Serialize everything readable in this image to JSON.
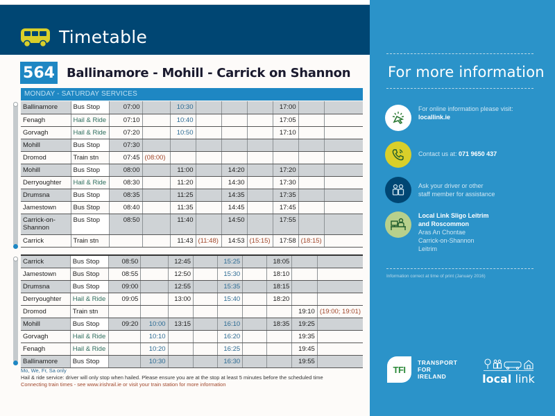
{
  "header": {
    "title": "Timetable",
    "icon": "bus-icon"
  },
  "route": {
    "number": "564",
    "name": "Ballinamore - Mohill - Carrick on Shannon"
  },
  "service_label": "MONDAY - SATURDAY SERVICES",
  "outbound": [
    {
      "stop": "Ballinamore",
      "type": "Bus Stop",
      "times": [
        "07:00",
        "",
        "10:30",
        "",
        "",
        "",
        "17:00",
        "",
        ""
      ]
    },
    {
      "stop": "Fenagh",
      "type": "Hail & Ride",
      "times": [
        "07:10",
        "",
        "10:40",
        "",
        "",
        "",
        "17:05",
        "",
        ""
      ]
    },
    {
      "stop": "Gorvagh",
      "type": "Hail & Ride",
      "times": [
        "07:20",
        "",
        "10:50",
        "",
        "",
        "",
        "17:10",
        "",
        ""
      ]
    },
    {
      "stop": "Mohill",
      "type": "Bus Stop",
      "times": [
        "07:30",
        "",
        "",
        "",
        "",
        "",
        "",
        "",
        ""
      ]
    },
    {
      "stop": "Dromod",
      "type": "Train stn",
      "times": [
        "07:45",
        "(08:00)",
        "",
        "",
        "",
        "",
        "",
        "",
        ""
      ]
    },
    {
      "stop": "Mohill",
      "type": "Bus Stop",
      "times": [
        "08:00",
        "",
        "11:00",
        "",
        "14:20",
        "",
        "17:20",
        "",
        ""
      ]
    },
    {
      "stop": "Derryoughter",
      "type": "Hail & Ride",
      "times": [
        "08:30",
        "",
        "11:20",
        "",
        "14:30",
        "",
        "17:30",
        "",
        ""
      ]
    },
    {
      "stop": "Drumsna",
      "type": "Bus Stop",
      "times": [
        "08:35",
        "",
        "11:25",
        "",
        "14:35",
        "",
        "17:35",
        "",
        ""
      ]
    },
    {
      "stop": "Jamestown",
      "type": "Bus Stop",
      "times": [
        "08:40",
        "",
        "11:35",
        "",
        "14:45",
        "",
        "17:45",
        "",
        ""
      ]
    },
    {
      "stop": "Carrick-on-Shannon",
      "type": "Bus Stop",
      "times": [
        "08:50",
        "",
        "11:40",
        "",
        "14:50",
        "",
        "17:55",
        "",
        ""
      ]
    },
    {
      "stop": "Carrick",
      "type": "Train stn",
      "times": [
        "",
        "",
        "11:43",
        "(11:48)",
        "14:53",
        "(15:15)",
        "17:58",
        "(18:15)",
        ""
      ]
    }
  ],
  "inbound": [
    {
      "stop": "Carrick",
      "type": "Bus Stop",
      "times": [
        "08:50",
        "",
        "12:45",
        "",
        "15:25",
        "",
        "18:05",
        "",
        ""
      ]
    },
    {
      "stop": "Jamestown",
      "type": "Bus Stop",
      "times": [
        "08:55",
        "",
        "12:50",
        "",
        "15:30",
        "",
        "18:10",
        "",
        ""
      ]
    },
    {
      "stop": "Drumsna",
      "type": "Bus Stop",
      "times": [
        "09:00",
        "",
        "12:55",
        "",
        "15:35",
        "",
        "18:15",
        "",
        ""
      ]
    },
    {
      "stop": "Derryoughter",
      "type": "Hail & Ride",
      "times": [
        "09:05",
        "",
        "13:00",
        "",
        "15:40",
        "",
        "18:20",
        "",
        ""
      ]
    },
    {
      "stop": "Dromod",
      "type": "Train stn",
      "times": [
        "",
        "",
        "",
        "",
        "",
        "",
        "",
        "19:10",
        "(19:00; 19:01)"
      ]
    },
    {
      "stop": "Mohill",
      "type": "Bus Stop",
      "times": [
        "09:20",
        "10:00",
        "13:15",
        "",
        "16:10",
        "",
        "18:35",
        "19:25",
        ""
      ]
    },
    {
      "stop": "Gorvagh",
      "type": "Hail & Ride",
      "times": [
        "",
        "10:10",
        "",
        "",
        "16:20",
        "",
        "",
        "19:35",
        ""
      ]
    },
    {
      "stop": "Fenagh",
      "type": "Hail & Ride",
      "times": [
        "",
        "10:20",
        "",
        "",
        "16:25",
        "",
        "",
        "19:45",
        ""
      ]
    },
    {
      "stop": "Ballinamore",
      "type": "Bus Stop",
      "times": [
        "",
        "10:30",
        "",
        "",
        "16:30",
        "",
        "",
        "19:55",
        ""
      ]
    }
  ],
  "notes": {
    "days": "Mo, We, Fr, Sa only",
    "hail": "Hail & ride service: driver will only stop when hailed. Please ensure you are at the stop at least 5 minutes before the scheduled time",
    "train": "Connecting train times - see www.irishrail.ie or visit your train station for more information"
  },
  "info": {
    "title": "For more information",
    "online_text": "For online information please visit:",
    "online_link": "locallink.ie",
    "contact_text": "Contact us at:",
    "contact_phone": "071 9650 437",
    "assist_line1": "Ask your driver or other",
    "assist_line2": "staff member for assistance",
    "office_name1": "Local Link Sligo Leitrim",
    "office_name2": "and Roscommon",
    "office_addr1": "Aras An Chontae",
    "office_addr2": "Carrick-on-Shannon",
    "office_addr3": "Leitrim",
    "footnote": "Information correct at time of print (January 2016)"
  },
  "logos": {
    "tfi_mark": "TFI",
    "tfi_line1": "TRANSPORT",
    "tfi_line2": "FOR",
    "tfi_line3": "IRELAND",
    "ll_bold": "local",
    "ll_light": " link"
  },
  "colors": {
    "header_navy": "#004673",
    "accent_blue": "#2b93c9",
    "route_blue": "#1e87c3",
    "hail_green": "#2d6e5e",
    "train_brown": "#a0462a",
    "yellow": "#d9cf2a"
  }
}
